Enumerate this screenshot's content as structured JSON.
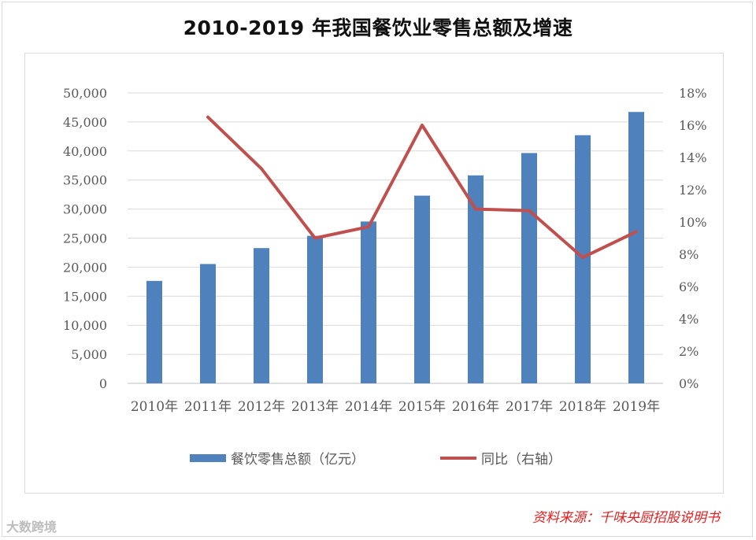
{
  "title": "2010-2019 年我国餐饮业零售总额及增速",
  "source": "资料来源：千味央厨招股说明书",
  "watermark": "大数跨境",
  "chart_data": {
    "type": "bar",
    "categories": [
      "2010年",
      "2011年",
      "2012年",
      "2013年",
      "2014年",
      "2015年",
      "2016年",
      "2017年",
      "2018年",
      "2019年"
    ],
    "series": [
      {
        "name": "餐饮零售总额（亿元）",
        "type": "bar",
        "axis": "left",
        "color": "#4f81bd",
        "values": [
          17636,
          20543,
          23283,
          25392,
          27860,
          32310,
          35799,
          39644,
          42716,
          46721
        ]
      },
      {
        "name": "同比（右轴）",
        "type": "line",
        "axis": "right",
        "color": "#c0504d",
        "values": [
          null,
          16.5,
          13.3,
          9.0,
          9.7,
          16.0,
          10.8,
          10.7,
          7.8,
          9.4
        ]
      }
    ],
    "y_left": {
      "min": 0,
      "max": 50000,
      "step": 5000,
      "ticks": [
        "0",
        "5,000",
        "10,000",
        "15,000",
        "20,000",
        "25,000",
        "30,000",
        "35,000",
        "40,000",
        "45,000",
        "50,000"
      ]
    },
    "y_right": {
      "min": 0,
      "max": 18,
      "step": 2,
      "ticks": [
        "0%",
        "2%",
        "4%",
        "6%",
        "8%",
        "10%",
        "12%",
        "14%",
        "16%",
        "18%"
      ]
    },
    "grid": true,
    "legend": "bottom"
  }
}
